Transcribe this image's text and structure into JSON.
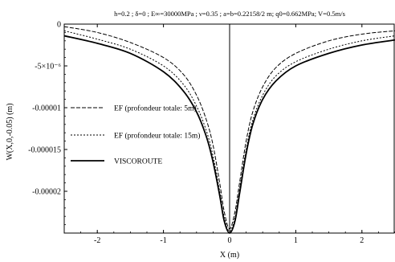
{
  "chart_data": {
    "type": "line",
    "title": "h=0.2 ; δ=0 ; E∞=30000MPa ; ν=0.35 ; a=b=0.22158/2 m; q0=0.662MPa; V=0.5m/s",
    "xlabel": "X (m)",
    "ylabel": "W(X,0,-0.05) (m)",
    "xlim": [
      -2.5,
      2.5
    ],
    "ylim": [
      -2.5e-05,
      0
    ],
    "x_ticks": [
      {
        "value": -2,
        "label": "-2"
      },
      {
        "value": -1,
        "label": "-1"
      },
      {
        "value": 0,
        "label": "0"
      },
      {
        "value": 1,
        "label": "1"
      },
      {
        "value": 2,
        "label": "2"
      }
    ],
    "y_ticks": [
      {
        "value": 0,
        "label": "0"
      },
      {
        "value": -5e-06,
        "label": "-5×10⁻⁶"
      },
      {
        "value": -1e-05,
        "label": "-0.00001"
      },
      {
        "value": -1.5e-05,
        "label": "-0.000015"
      },
      {
        "value": -2e-05,
        "label": "-0.00002"
      }
    ],
    "grid": false,
    "legend_position": "left-middle",
    "series": [
      {
        "name": "EF (profondeur totale: 5m)",
        "style": "dashed",
        "color": "#000000",
        "points": [
          [
            -2.5,
            -3e-07
          ],
          [
            -2.0,
            -1e-06
          ],
          [
            -1.5,
            -2.2e-06
          ],
          [
            -1.0,
            -4e-06
          ],
          [
            -0.7,
            -6e-06
          ],
          [
            -0.5,
            -8.5e-06
          ],
          [
            -0.35,
            -1.15e-05
          ],
          [
            -0.25,
            -1.45e-05
          ],
          [
            -0.15,
            -1.9e-05
          ],
          [
            -0.08,
            -2.25e-05
          ],
          [
            0.0,
            -2.45e-05
          ],
          [
            0.08,
            -2.25e-05
          ],
          [
            0.15,
            -1.9e-05
          ],
          [
            0.25,
            -1.4e-05
          ],
          [
            0.35,
            -1.05e-05
          ],
          [
            0.5,
            -7.5e-06
          ],
          [
            0.7,
            -5.2e-06
          ],
          [
            1.0,
            -3.5e-06
          ],
          [
            1.5,
            -2e-06
          ],
          [
            2.0,
            -1.2e-06
          ],
          [
            2.5,
            -8e-07
          ]
        ]
      },
      {
        "name": "EF (profondeur totale: 15m)",
        "style": "dotted",
        "color": "#000000",
        "points": [
          [
            -2.5,
            -8e-07
          ],
          [
            -2.0,
            -1.8e-06
          ],
          [
            -1.5,
            -3e-06
          ],
          [
            -1.0,
            -5e-06
          ],
          [
            -0.7,
            -7.2e-06
          ],
          [
            -0.5,
            -9.8e-06
          ],
          [
            -0.35,
            -1.28e-05
          ],
          [
            -0.25,
            -1.58e-05
          ],
          [
            -0.15,
            -2e-05
          ],
          [
            -0.08,
            -2.32e-05
          ],
          [
            0.0,
            -2.48e-05
          ],
          [
            0.08,
            -2.32e-05
          ],
          [
            0.15,
            -1.98e-05
          ],
          [
            0.25,
            -1.5e-05
          ],
          [
            0.35,
            -1.15e-05
          ],
          [
            0.5,
            -8.5e-06
          ],
          [
            0.7,
            -6.2e-06
          ],
          [
            1.0,
            -4.5e-06
          ],
          [
            1.5,
            -3e-06
          ],
          [
            2.0,
            -2e-06
          ],
          [
            2.5,
            -1.4e-06
          ]
        ]
      },
      {
        "name": "VISCOROUTE",
        "style": "solid",
        "color": "#000000",
        "points": [
          [
            -2.5,
            -1.4e-06
          ],
          [
            -2.0,
            -2.3e-06
          ],
          [
            -1.5,
            -3.5e-06
          ],
          [
            -1.0,
            -5.7e-06
          ],
          [
            -0.7,
            -8e-06
          ],
          [
            -0.5,
            -1.05e-05
          ],
          [
            -0.35,
            -1.35e-05
          ],
          [
            -0.25,
            -1.65e-05
          ],
          [
            -0.15,
            -2.05e-05
          ],
          [
            -0.08,
            -2.36e-05
          ],
          [
            0.0,
            -2.5e-05
          ],
          [
            0.08,
            -2.36e-05
          ],
          [
            0.15,
            -2.03e-05
          ],
          [
            0.25,
            -1.55e-05
          ],
          [
            0.35,
            -1.2e-05
          ],
          [
            0.5,
            -9e-06
          ],
          [
            0.7,
            -6.8e-06
          ],
          [
            1.0,
            -5e-06
          ],
          [
            1.5,
            -3.5e-06
          ],
          [
            2.0,
            -2.5e-06
          ],
          [
            2.5,
            -1.9e-06
          ]
        ]
      }
    ]
  }
}
